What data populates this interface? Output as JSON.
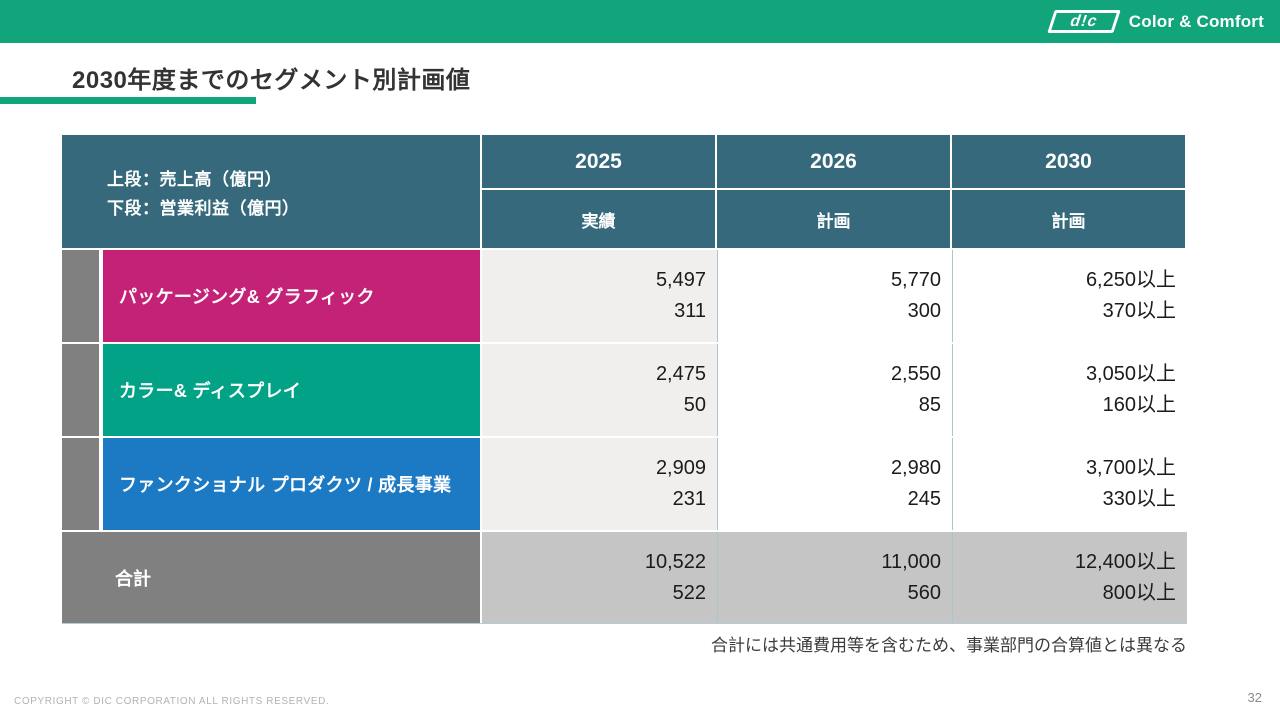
{
  "brand": {
    "logo_text": "d!c",
    "tagline": "Color & Comfort"
  },
  "title": "2030年度までのセグメント別計画値",
  "colors": {
    "brand_green": "#12A57C",
    "header_teal": "#35697B",
    "row_magenta": "#C42277",
    "row_green": "#02A287",
    "row_blue": "#1C79C4",
    "total_gray": "#808080",
    "col2025_bg": "#F0EFED",
    "total_cells_bg": "#C5C5C5"
  },
  "table": {
    "corner": {
      "line1": "上段：売上高（億円）",
      "line2": "下段：営業利益（億円）"
    },
    "columns": [
      {
        "year": "2025",
        "type": "実績"
      },
      {
        "year": "2026",
        "type": "計画"
      },
      {
        "year": "2030",
        "type": "計画"
      }
    ],
    "rows": [
      {
        "label": "パッケージング& グラフィック",
        "color": "#C42277",
        "values": [
          [
            "5,497",
            "311"
          ],
          [
            "5,770",
            "300"
          ],
          [
            "6,250以上",
            "370以上"
          ]
        ]
      },
      {
        "label": "カラー& ディスプレイ",
        "color": "#02A287",
        "values": [
          [
            "2,475",
            "50"
          ],
          [
            "2,550",
            "85"
          ],
          [
            "3,050以上",
            "160以上"
          ]
        ]
      },
      {
        "label": "ファンクショナル プロダクツ / 成長事業",
        "color": "#1C79C4",
        "values": [
          [
            "2,909",
            "231"
          ],
          [
            "2,980",
            "245"
          ],
          [
            "3,700以上",
            "330以上"
          ]
        ]
      }
    ],
    "total": {
      "label": "合計",
      "values": [
        [
          "10,522",
          "522"
        ],
        [
          "11,000",
          "560"
        ],
        [
          "12,400以上",
          "800以上"
        ]
      ]
    }
  },
  "note": "合計には共通費用等を含むため、事業部門の合算値とは異なる",
  "footer": {
    "copyright": "COPYRIGHT © DIC CORPORATION ALL RIGHTS RESERVED.",
    "page": "32"
  }
}
